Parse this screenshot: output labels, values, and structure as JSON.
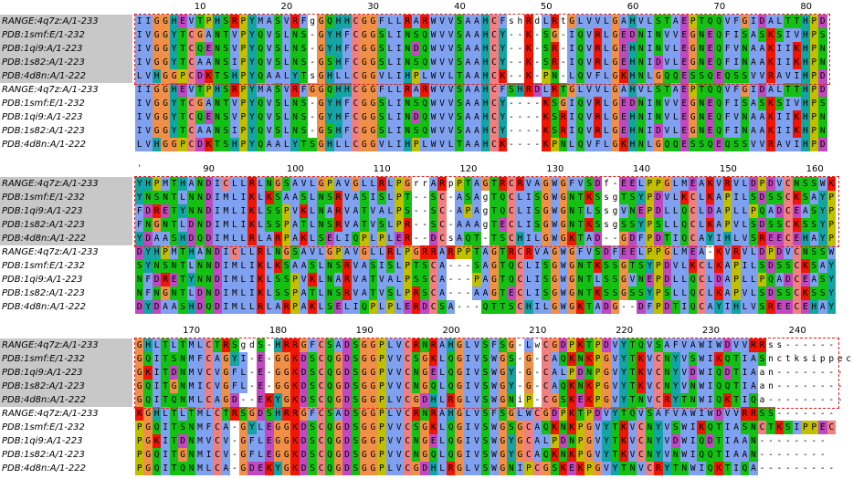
{
  "names": [
    "RANGE:4q7z:A/1-233",
    "PDB:1smf:E/1-232",
    "PDB:1qi9:A/1-223",
    "PDB:1s82:A/1-223",
    "PDB:4d8n:A/1-222"
  ],
  "blocks": [
    {
      "ticks": [
        "10",
        "20",
        "30",
        "40",
        "50",
        "60",
        "70",
        "80"
      ],
      "selected": [
        "IIGGHEVTPHSRPYMASVRFgGQHHCGGFLLRARWVVSAAHCFshRdLRtGLVVLGAHVLSTAEPTQQVFGIDALTTHPD",
        "IVGGYTCGANTVPYQVSLNS-GYHFCGGSLINSQWVVSAAHCY--K-SG-IQVRLGEDNINVVEGNEQFISASKSIVHPS",
        "IVGGYTCQENSVPYQVSLNS-GYHFCGGSLINDQWVVSAAHCY--K-SR-IQVRLGEHNINVLEGNEQFVNAAKIIKHPN",
        "IVGGYTCAANSIPYQVSLNS-GSHFCGGSLINSQWVVSAAHCY--K-SR-IQVRLGEHNIDVLEGNEQFINAAKIIKHPN",
        "LVHGGPCDKTSHPYQAALYTsGHLLCGGVLIHPLWVLTAAHCK--K-PN-LQVFLGKHNLGQQESSQEQSSVVRAVIHPD"
      ],
      "plain": [
        "IIGGHEVTPHSRPYMASVRFGGQHHCGGFLLRARWVVSAAHCFSHRDLRTGLVVLGAHVLSTAEPTQQVFGIDALTTHPD",
        "IVGGYTCGANTVPYQVSLNS-GYHFCGGSLINSQWVVSAAHCY----KSGIQVRLGEDNINVVEGNEQFISASKSIVHPS",
        "IVGGYTCQENSVPYQVSLNS-GYHFCGGSLINDQWVVSAAHCY----KSRIQVRLGEHNINVLEGNEQFVNAAKIIKHPN",
        "IVGGYTCAANSIPYQVSLNS-GSHFCGGSLINSQWVVSAAHCY----KSRIQVRLGEHNIDVLEGNEQFINAAKIIKHPN",
        "LVHGGPCDKTSHPYQAALYTSGHLLCGGVLIHPLWVLTAAHCK----KPNLQVFLGKHNLGQQESSQEQSSVVRAVIHPD"
      ]
    },
    {
      "ticks": [
        "",
        "90",
        "100",
        "110",
        "120",
        "130",
        "140",
        "150",
        "160"
      ],
      "selected": [
        "YHPMTHANDICLLRLNGSAVLGPAVGLLRLPGrrARpPTAGTRCRVAGWGFVSDf-EELPPGLMEAKVRVLDPDVCNSSWK",
        "YNSNTLNNDIMLIKLKSAASLNSRVASISLPT--SC-ASAgTQCLISGWGNTKSsgTSYPDVLKCLKAPILSDSSCKSAYP",
        "FDRETYNNDIMLIKLSSPVKLNARVATVALPS--SC-APAgTQCLISGWGNTLSsgVNEPDLLQCLDAPLLPQADCEASYP",
        "FNGNTLDNDIMLIKLSSPATLNSRVATVSLPR--SC-AAAgTECLISGWGNTKSsgSSYPSLLQCLKAPVLSDSSCKSSYP",
        "YDAASHDQDIMLLRLARPAKLSELIQPLPLER--DCsAQT-TSCHILGWGKTAD--GDFPDTIQCAYIHLVSREECEHAYP"
      ],
      "plain": [
        "DYHPMTHANDICLLRLNGSAVLGPAVGLLRLPGRRARPPTAGTRCRVAGWGFVSDFEELPPGLMEA-KVRVLDPDVCNSSW",
        "SYNSNTLNNDIMLIKLKSAASLNSRVASISLPTSCA---SAGTQCLISGWGNTKSSGTSYPDVLKCLKAPILSDSSCKSAY",
        "NFDRETYNNDIMLIKLSSPVKLNARVATVALPSSCA---PAGTQCLISGWGNTLSSGVNEPDLLQCLDAPLLPQADCEASY",
        "NFNGNTLDNDIMLIKLSSPATLNSRVATVSLPRSCA---AAGTECLISGWGNTKSSGSSYPSLLQCLKAPVLSDSSCKSSY",
        "DYDAASHDQDIMLLRLARPAKLSELIQPLPLERDCSA---QTTSCHILGWGKTADG--DFPDTIQCAYIHLVSREECEHAY"
      ]
    },
    {
      "ticks": [
        "170",
        "180",
        "190",
        "200",
        "210",
        "220",
        "230",
        "240"
      ],
      "selected": [
        "GHLTLTMLCTRSgdS-HRRGFCSADSGGPLVCRNRAHGLVSFSG-LwCGDPKTPDVYTQVSAFVAWIWDVVRRss------",
        "GQITSNMFCAGYI-E-GGKDSCQGDSGGPVVCSGKLQGIVSWGS-G-CAQKNKPGVYTKVCNYVSWIKQTIASnctksippec",
        "GKITDNMVCVGFL-E-GGKDSCQGDSGGPVVCNGELQGIVSWGY-G-CALPDNPGVYTKVCNYVDWIQDTIAan--------",
        "GQITGNMICVGFL-E-GGKDSCQGDSGGPVVCNGQLQGIVSWGY-G-CAQKNKPGVYTKVCNYVNWIQQTIAan--------",
        "GQITQNMLCAGD--EKYGKDSCQGDSGGPLVCGDHLRGLVSWGNiP-CGSKEKPGVYTNVCRYTNWIQKTIQa---------"
      ],
      "plain": [
        "KGHLTLTMLCTRSGDSHRRGFCSADSGGPLVCRNRAHGLVSFSGLWCGDPKTPDVYTQVSAFVAWIWDVVRRSS-------",
        "PGQITSNMFCA-GYLEGGKDSCQGDSGGPVVCSGKLQGIVSWGSGCAQKNKPGVYTKVCNYVSWIKQTIASNCTKSIPPEC",
        "PGKITDNMVCV-GFLEGGKDSCQGDSGGPVVCNGELQGIVSWGYGCALPDNPGVYTKVCNYVDWIQDTIAAN--------",
        "PGQITGNMICV-GFLEGGKDSCQGDSGGPVVCNGQLQGIVSWGYGCAQKNKPGVYTKVCNYVNWIQQTIAAN--------",
        "PGQITQNMLCA-GDEKYGKDSCQGDSGGPLVCGDHLRGLVSWGNIPCGSKEKPGVYTNVCRYTNWIQKTIQA---------"
      ]
    }
  ],
  "colors": {
    "hydrophobic": "#80a0f0",
    "positive": "#f01505",
    "negative": "#c048c0",
    "polar": "#15c015",
    "cysteine": "#f08080",
    "glycine": "#f09048",
    "proline": "#c0c000",
    "aromatic": "#15a4a4",
    "selection_border": "#d82020",
    "selection_bg": "#c8c8c8"
  }
}
